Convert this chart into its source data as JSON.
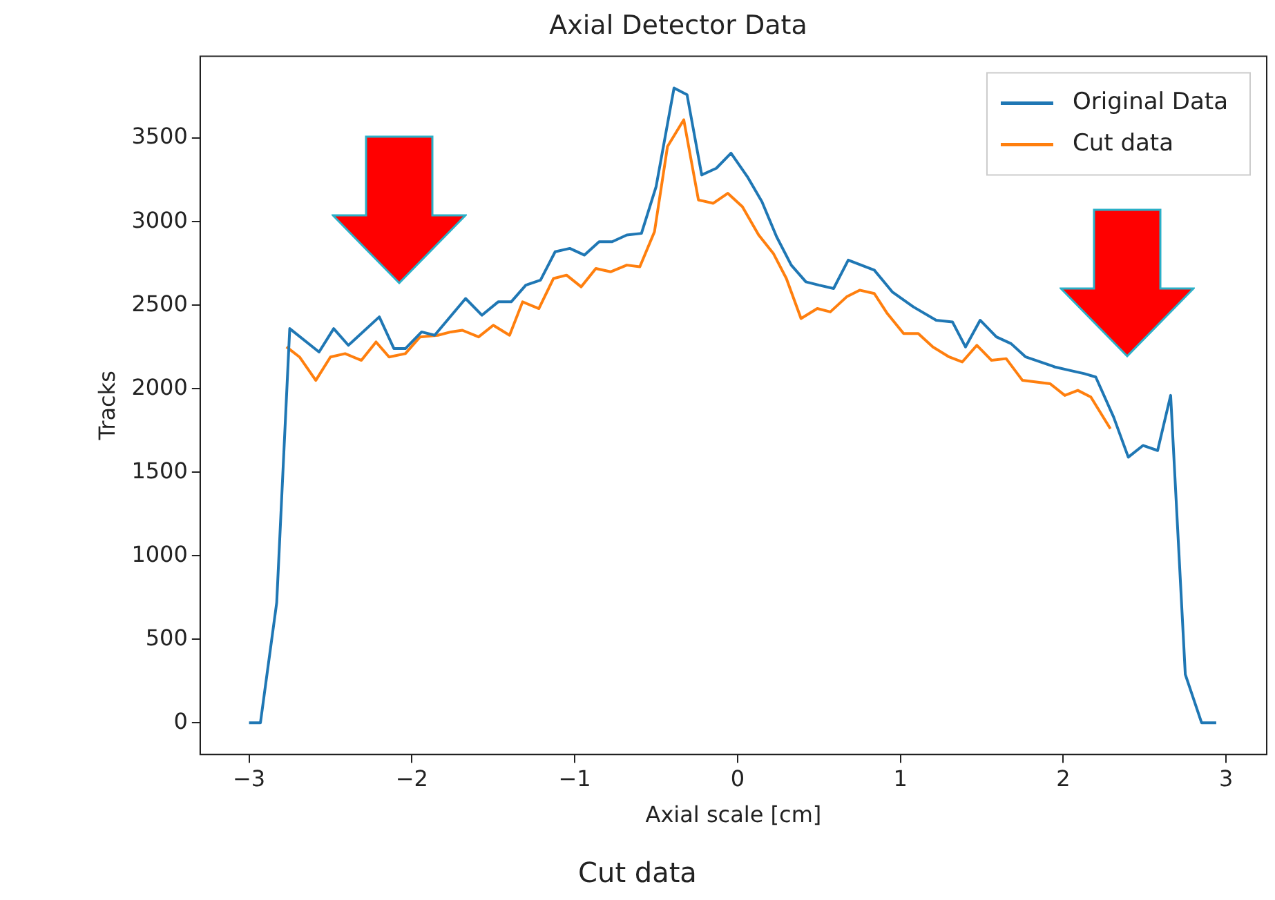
{
  "chart_data": {
    "type": "line",
    "title": "Axial Detector Data",
    "xlabel": "Axial scale [cm]",
    "ylabel": "Tracks",
    "annotations": [
      "Cut data"
    ],
    "series": [
      {
        "name": "Original Data",
        "color": "#1f77b4",
        "x": [
          -3.0,
          -2.93,
          -2.83,
          -2.75,
          -2.57,
          -2.48,
          -2.39,
          -2.2,
          -2.11,
          -2.04,
          -1.94,
          -1.86,
          -1.67,
          -1.57,
          -1.47,
          -1.39,
          -1.3,
          -1.21,
          -1.12,
          -1.03,
          -0.94,
          -0.85,
          -0.77,
          -0.68,
          -0.59,
          -0.5,
          -0.39,
          -0.31,
          -0.22,
          -0.13,
          -0.04,
          0.06,
          0.15,
          0.24,
          0.33,
          0.42,
          0.5,
          0.59,
          0.68,
          0.84,
          0.95,
          1.08,
          1.22,
          1.32,
          1.4,
          1.49,
          1.59,
          1.68,
          1.77,
          1.86,
          1.95,
          2.04,
          2.13,
          2.2,
          2.31,
          2.4,
          2.49,
          2.58,
          2.66,
          2.75,
          2.85,
          2.94
        ],
        "values": [
          0,
          0,
          720,
          2360,
          2220,
          2360,
          2260,
          2430,
          2240,
          2240,
          2340,
          2320,
          2540,
          2440,
          2520,
          2520,
          2620,
          2650,
          2820,
          2840,
          2800,
          2880,
          2880,
          2920,
          2930,
          3210,
          3800,
          3760,
          3280,
          3320,
          3410,
          3270,
          3120,
          2910,
          2740,
          2640,
          2620,
          2600,
          2770,
          2710,
          2580,
          2490,
          2410,
          2400,
          2250,
          2410,
          2310,
          2270,
          2190,
          2160,
          2130,
          2110,
          2090,
          2070,
          1830,
          1590,
          1660,
          1630,
          1960,
          290,
          0,
          0
        ]
      },
      {
        "name": "Cut data",
        "color": "#ff7f0e",
        "x": [
          -2.77,
          -2.69,
          -2.59,
          -2.5,
          -2.41,
          -2.31,
          -2.22,
          -2.14,
          -2.04,
          -1.95,
          -1.84,
          -1.76,
          -1.69,
          -1.59,
          -1.5,
          -1.4,
          -1.32,
          -1.22,
          -1.13,
          -1.05,
          -0.96,
          -0.87,
          -0.78,
          -0.68,
          -0.6,
          -0.51,
          -0.43,
          -0.33,
          -0.24,
          -0.15,
          -0.06,
          0.03,
          0.13,
          0.22,
          0.3,
          0.39,
          0.49,
          0.57,
          0.67,
          0.75,
          0.84,
          0.92,
          1.02,
          1.11,
          1.2,
          1.3,
          1.38,
          1.47,
          1.56,
          1.65,
          1.75,
          1.92,
          2.01,
          2.09,
          2.17,
          2.29
        ],
        "values": [
          2250,
          2190,
          2050,
          2190,
          2210,
          2170,
          2280,
          2190,
          2210,
          2310,
          2320,
          2340,
          2350,
          2310,
          2380,
          2320,
          2520,
          2480,
          2660,
          2680,
          2610,
          2720,
          2700,
          2740,
          2730,
          2940,
          3450,
          3610,
          3130,
          3110,
          3170,
          3090,
          2920,
          2810,
          2660,
          2420,
          2480,
          2460,
          2550,
          2590,
          2570,
          2450,
          2330,
          2330,
          2250,
          2190,
          2160,
          2260,
          2170,
          2180,
          2050,
          2030,
          1960,
          1990,
          1950,
          1760
        ]
      }
    ],
    "xlim": [
      -3.3,
      3.25
    ],
    "ylim": [
      -190,
      3990
    ],
    "xticks": [
      {
        "value": -3,
        "label": "−3"
      },
      {
        "value": -2,
        "label": "−2"
      },
      {
        "value": -1,
        "label": "−1"
      },
      0,
      1,
      2,
      3
    ],
    "yticks": [
      0,
      500,
      1000,
      1500,
      2000,
      2500,
      3000,
      3500
    ],
    "grid": false,
    "legend": "top right"
  }
}
